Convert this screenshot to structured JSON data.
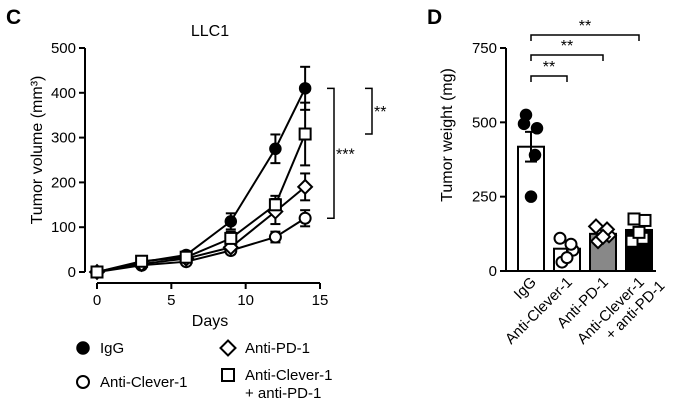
{
  "chart_data": [
    {
      "panel": "C",
      "type": "line",
      "title": "LLC1",
      "xlabel": "Days",
      "ylabel": "Tumor volume (mm³)",
      "xlim": [
        0,
        15
      ],
      "ylim": [
        0,
        500
      ],
      "x_ticks": [
        0,
        5,
        10,
        15
      ],
      "y_ticks": [
        0,
        100,
        200,
        300,
        400,
        500
      ],
      "x": [
        0,
        3,
        6,
        9,
        12,
        14
      ],
      "legend_position": "bottom",
      "series": [
        {
          "name": "IgG",
          "marker": "filled-circle",
          "fill": "#000000",
          "values": [
            0,
            22,
            38,
            113,
            275,
            410
          ],
          "errors": [
            0,
            6,
            8,
            18,
            32,
            48
          ]
        },
        {
          "name": "Anti-Clever-1",
          "marker": "open-circle",
          "fill": "#ffffff",
          "values": [
            0,
            15,
            23,
            48,
            78,
            120
          ],
          "errors": [
            0,
            4,
            5,
            8,
            12,
            18
          ]
        },
        {
          "name": "Anti-PD-1",
          "marker": "open-diamond",
          "fill": "#ffffff",
          "values": [
            0,
            18,
            30,
            55,
            135,
            190
          ],
          "errors": [
            0,
            5,
            6,
            10,
            28,
            30
          ]
        },
        {
          "name": "Anti-Clever-1 + anti-PD-1",
          "marker": "open-square",
          "fill": "#ffffff",
          "values": [
            0,
            24,
            33,
            75,
            150,
            308
          ],
          "errors": [
            0,
            5,
            7,
            15,
            20,
            70
          ]
        }
      ],
      "significance": [
        {
          "label": "***",
          "from": 120,
          "to": 410
        },
        {
          "label": "**",
          "from": 308,
          "to": 410
        }
      ]
    },
    {
      "panel": "D",
      "type": "bar",
      "ylabel": "Tumor weight (mg)",
      "ylim": [
        0,
        750
      ],
      "y_ticks": [
        0,
        250,
        500,
        750
      ],
      "categories": [
        "IgG",
        "Anti-Clever-1",
        "Anti-PD-1",
        "Anti-Clever-1 + anti-PD-1"
      ],
      "values": [
        418,
        75,
        125,
        138
      ],
      "errors": [
        50,
        25,
        15,
        25
      ],
      "bar_colors": [
        "#ffffff",
        "#ffffff",
        "#888888",
        "#000000"
      ],
      "markers": [
        "filled-circle",
        "open-circle",
        "open-diamond",
        "open-square"
      ],
      "points": [
        [
          525,
          480,
          495,
          390,
          250
        ],
        [
          30,
          70,
          110,
          90,
          45
        ],
        [
          100,
          120,
          150,
          140,
          115
        ],
        [
          175,
          170,
          100,
          110,
          130
        ]
      ],
      "significance": [
        {
          "label": "**",
          "from": 0,
          "to": 1
        },
        {
          "label": "**",
          "from": 0,
          "to": 2
        },
        {
          "label": "**",
          "from": 0,
          "to": 3
        }
      ]
    }
  ],
  "labels": {
    "panel_c": "C",
    "panel_d": "D"
  },
  "legend": [
    {
      "label": "IgG",
      "marker": "filled-circle"
    },
    {
      "label": "Anti-PD-1",
      "marker": "open-diamond"
    },
    {
      "label": "Anti-Clever-1",
      "marker": "open-circle"
    },
    {
      "label_lines": [
        "Anti-Clever-1",
        "+ anti-PD-1"
      ],
      "marker": "open-square"
    }
  ],
  "colors": {
    "ink": "#000000",
    "anti_pd1_bar": "#888888"
  }
}
